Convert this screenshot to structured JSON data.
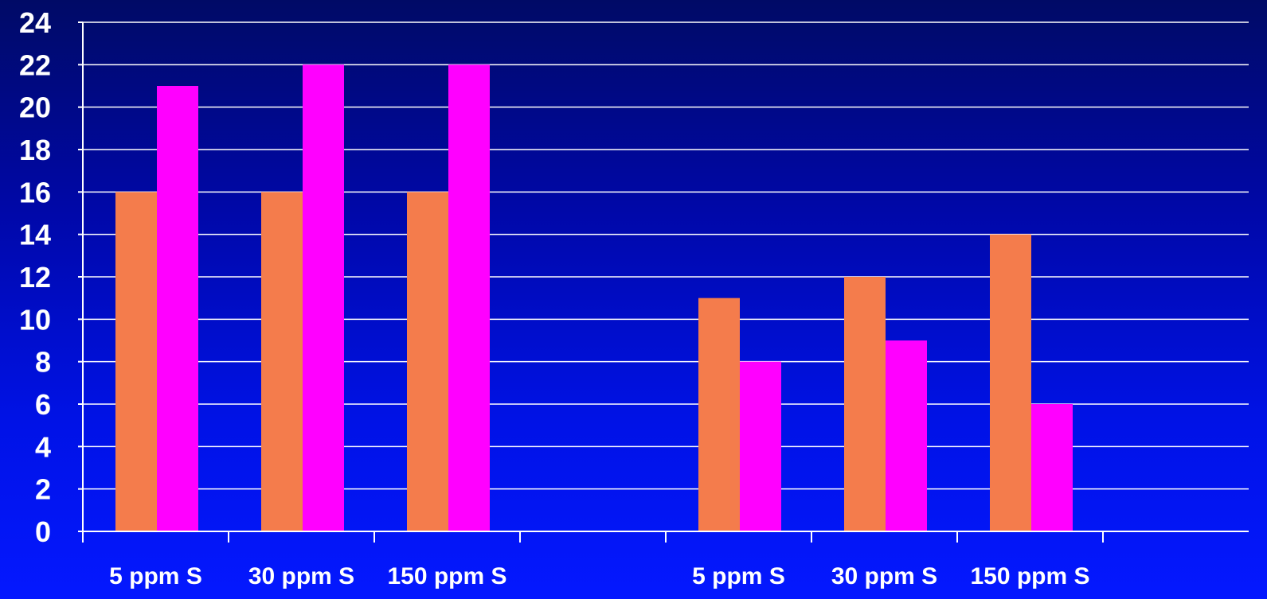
{
  "chart_data": {
    "type": "bar",
    "ylim": [
      0,
      24
    ],
    "y_ticks": [
      "0",
      "2",
      "4",
      "6",
      "8",
      "10",
      "12",
      "14",
      "16",
      "18",
      "20",
      "22",
      "24"
    ],
    "grid": true,
    "legend": "none",
    "categories": [
      "5 ppm S",
      "30 ppm S",
      "150 ppm S",
      "",
      "5 ppm S",
      "30 ppm S",
      "150 ppm S",
      ""
    ],
    "series": [
      {
        "color": "#f47c4c",
        "values": [
          16,
          16,
          16,
          null,
          11,
          12,
          14,
          null
        ]
      },
      {
        "color": "#ff00ff",
        "values": [
          21,
          22,
          22,
          null,
          8,
          9,
          6,
          null
        ]
      }
    ],
    "colors": {
      "grid": "#ffffff",
      "axis": "#ffffff",
      "text": "#ffffff"
    }
  }
}
